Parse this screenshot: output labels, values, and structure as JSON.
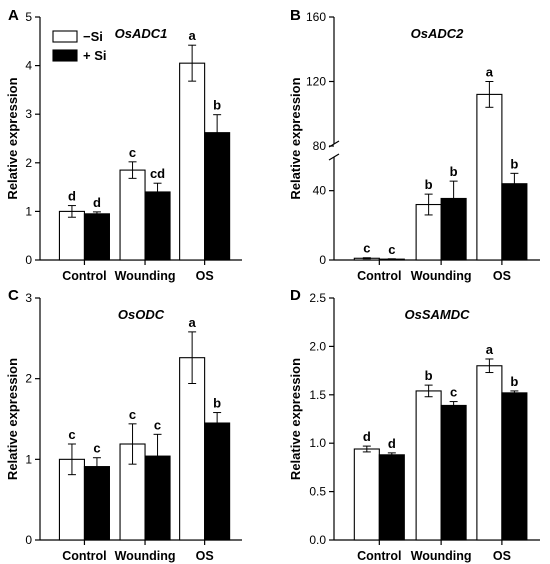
{
  "legend": [
    {
      "label": "−Si",
      "color": "#ffffff"
    },
    {
      "label": "+ Si",
      "color": "#000000"
    }
  ],
  "chart_data": [
    {
      "panel": "A",
      "type": "bar",
      "title": "OsADC1",
      "ylabel": "Relative expression",
      "categories": [
        "Control",
        "Wounding",
        "OS"
      ],
      "ylim": [
        0,
        5
      ],
      "yticks": [
        "0",
        "1",
        "2",
        "3",
        "4",
        "5"
      ],
      "series": [
        {
          "name": "−Si",
          "values": [
            1.0,
            1.85,
            4.05
          ],
          "errors": [
            0.12,
            0.17,
            0.37
          ],
          "letters": [
            "d",
            "c",
            "a"
          ]
        },
        {
          "name": "+ Si",
          "values": [
            0.95,
            1.4,
            2.62
          ],
          "errors": [
            0.04,
            0.18,
            0.37
          ],
          "letters": [
            "d",
            "cd",
            "b"
          ]
        }
      ]
    },
    {
      "panel": "B",
      "type": "bar",
      "title": "OsADC2",
      "ylabel": "Relative expression",
      "categories": [
        "Control",
        "Wounding",
        "OS"
      ],
      "ylim": [
        0,
        160
      ],
      "yticks": [
        "0",
        "40",
        "80",
        "120",
        "160"
      ],
      "axis_break": true,
      "series": [
        {
          "name": "−Si",
          "values": [
            1.0,
            32,
            112
          ],
          "errors": [
            0.3,
            6,
            8
          ],
          "letters": [
            "c",
            "b",
            "a"
          ]
        },
        {
          "name": "+ Si",
          "values": [
            0.5,
            35.5,
            44
          ],
          "errors": [
            0.2,
            10,
            6
          ],
          "letters": [
            "c",
            "b",
            "b"
          ]
        }
      ]
    },
    {
      "panel": "C",
      "type": "bar",
      "title": "OsODC",
      "ylabel": "Relative expression",
      "categories": [
        "Control",
        "Wounding",
        "OS"
      ],
      "ylim": [
        0,
        3
      ],
      "yticks": [
        "0",
        "1",
        "2",
        "3"
      ],
      "series": [
        {
          "name": "−Si",
          "values": [
            1.0,
            1.19,
            2.26
          ],
          "errors": [
            0.19,
            0.25,
            0.32
          ],
          "letters": [
            "c",
            "c",
            "a"
          ]
        },
        {
          "name": "+ Si",
          "values": [
            0.91,
            1.04,
            1.45
          ],
          "errors": [
            0.11,
            0.27,
            0.13
          ],
          "letters": [
            "c",
            "c",
            "b"
          ]
        }
      ]
    },
    {
      "panel": "D",
      "type": "bar",
      "title": "OsSAMDC",
      "ylabel": "Relative expression",
      "categories": [
        "Control",
        "Wounding",
        "OS"
      ],
      "ylim": [
        0,
        2.5
      ],
      "yticks": [
        "0.0",
        "0.5",
        "1.0",
        "1.5",
        "2.0",
        "2.5"
      ],
      "series": [
        {
          "name": "−Si",
          "values": [
            0.94,
            1.54,
            1.8
          ],
          "errors": [
            0.03,
            0.06,
            0.07
          ],
          "letters": [
            "d",
            "b",
            "a"
          ]
        },
        {
          "name": "+ Si",
          "values": [
            0.88,
            1.39,
            1.52
          ],
          "errors": [
            0.02,
            0.04,
            0.02
          ],
          "letters": [
            "d",
            "c",
            "b"
          ]
        }
      ]
    }
  ]
}
